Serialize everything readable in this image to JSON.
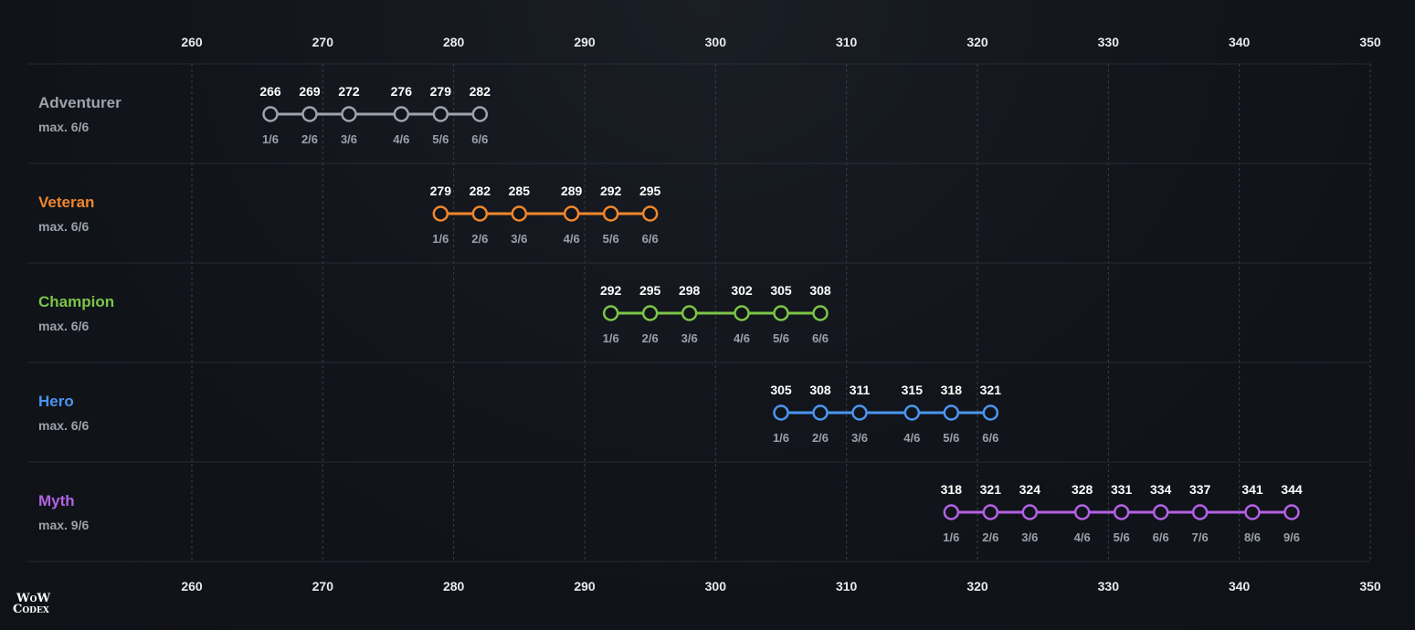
{
  "brand": {
    "logo_text": "WoW CODEX",
    "line1": "WoW",
    "line2": "Codex"
  },
  "colors": {
    "background": "#11141a",
    "grid": "#3a3f48",
    "axis_text": "#e8eaee"
  },
  "chart_data": {
    "type": "line",
    "title": "",
    "xlabel": "",
    "ylabel": "",
    "xlim": [
      250,
      350
    ],
    "xticks": [
      260,
      270,
      280,
      290,
      300,
      310,
      320,
      330,
      340,
      350
    ],
    "grid": true,
    "series": [
      {
        "name": "Adventurer",
        "max_label": "max. 6/6",
        "color": "#9ea3ac",
        "values": [
          266,
          269,
          272,
          276,
          279,
          282
        ],
        "ranks": [
          "1/6",
          "2/6",
          "3/6",
          "4/6",
          "5/6",
          "6/6"
        ]
      },
      {
        "name": "Veteran",
        "max_label": "max. 6/6",
        "color": "#f0862c",
        "values": [
          279,
          282,
          285,
          289,
          292,
          295
        ],
        "ranks": [
          "1/6",
          "2/6",
          "3/6",
          "4/6",
          "5/6",
          "6/6"
        ]
      },
      {
        "name": "Champion",
        "max_label": "max. 6/6",
        "color": "#7cc547",
        "values": [
          292,
          295,
          298,
          302,
          305,
          308
        ],
        "ranks": [
          "1/6",
          "2/6",
          "3/6",
          "4/6",
          "5/6",
          "6/6"
        ]
      },
      {
        "name": "Hero",
        "max_label": "max. 6/6",
        "color": "#4a95ef",
        "values": [
          305,
          308,
          311,
          315,
          318,
          321
        ],
        "ranks": [
          "1/6",
          "2/6",
          "3/6",
          "4/6",
          "5/6",
          "6/6"
        ]
      },
      {
        "name": "Myth",
        "max_label": "max. 9/6",
        "color": "#b362e3",
        "values": [
          318,
          321,
          324,
          328,
          331,
          334,
          337,
          341,
          344
        ],
        "ranks": [
          "1/6",
          "2/6",
          "3/6",
          "4/6",
          "5/6",
          "6/6",
          "7/6",
          "8/6",
          "9/6"
        ]
      }
    ]
  }
}
